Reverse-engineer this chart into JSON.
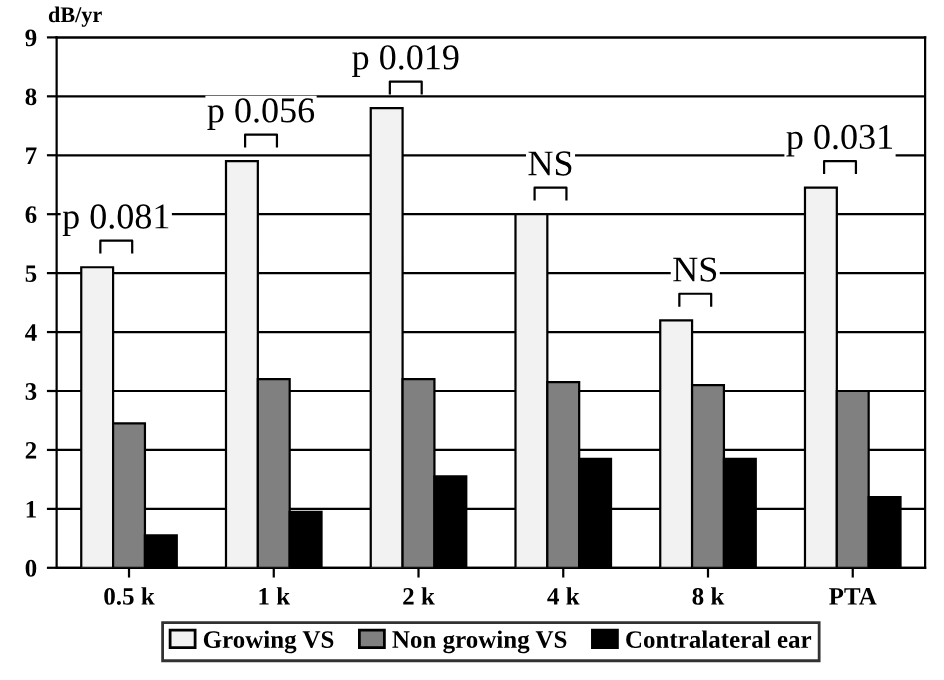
{
  "chart_data": {
    "type": "bar",
    "ylabel": "dB/yr",
    "categories": [
      "0.5 k",
      "1 k",
      "2 k",
      "4 k",
      "8 k",
      "PTA"
    ],
    "series": [
      {
        "name": "Growing VS",
        "color": "#f2f2f2",
        "values": [
          5.1,
          6.9,
          7.8,
          6.0,
          4.2,
          6.45
        ]
      },
      {
        "name": "Non growing VS",
        "color": "#808080",
        "values": [
          2.45,
          3.2,
          3.2,
          3.15,
          3.1,
          3.0
        ]
      },
      {
        "name": "Contralateral ear",
        "color": "#000000",
        "values": [
          0.55,
          0.95,
          1.55,
          1.85,
          1.85,
          1.2
        ]
      }
    ],
    "ylim": [
      0,
      9
    ],
    "yticks": [
      0,
      1,
      2,
      3,
      4,
      5,
      6,
      7,
      8,
      9
    ],
    "grid": "y",
    "legend": "bottom",
    "annotations": [
      "p 0.081",
      "p 0.056",
      "p 0.019",
      "NS",
      "NS",
      "p 0.031"
    ]
  }
}
